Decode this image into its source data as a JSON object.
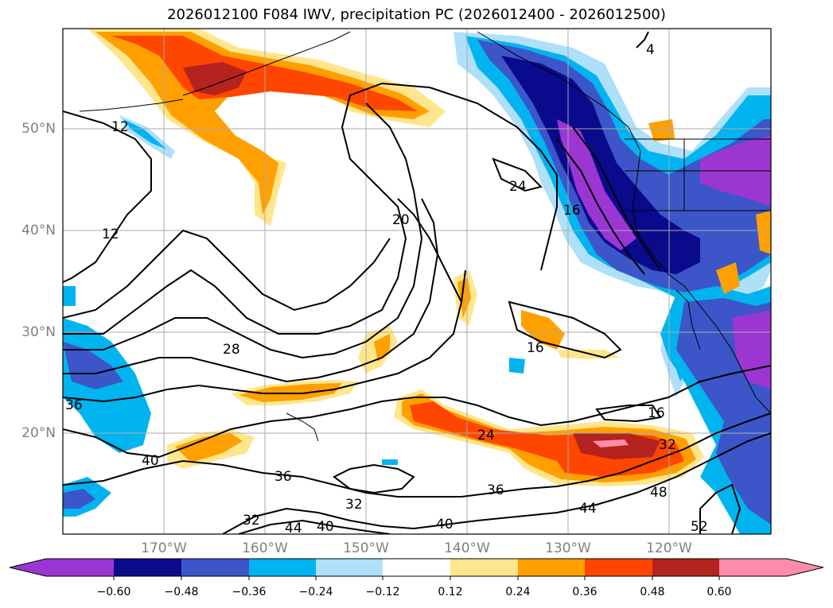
{
  "title": "2026012100 F084 IWV, precipitation PC (2026012400 - 2026012500)",
  "map": {
    "lat_labels": [
      "50°N",
      "40°N",
      "30°N",
      "20°N"
    ],
    "lon_labels": [
      "170°W",
      "160°W",
      "150°W",
      "140°W",
      "130°W",
      "120°W"
    ],
    "contour_labels": [
      "4",
      "12",
      "12",
      "16",
      "16",
      "16",
      "20",
      "24",
      "24",
      "28",
      "32",
      "32",
      "32",
      "36",
      "36",
      "36",
      "40",
      "40",
      "40",
      "44",
      "44",
      "48",
      "52"
    ],
    "contour_color": "#000000",
    "gridline_color": "#aaaaaa"
  },
  "colorbar": {
    "tick_labels": [
      "−0.60",
      "−0.48",
      "−0.36",
      "−0.24",
      "−0.12",
      "0.12",
      "0.24",
      "0.36",
      "0.48",
      "0.60"
    ],
    "colors": [
      "#9b36d3",
      "#0a0a8c",
      "#3c55c8",
      "#00b4f0",
      "#aee0fa",
      "#ffffff",
      "#ffe68c",
      "#ffa000",
      "#ff4600",
      "#b4231e",
      "#ff8caa"
    ],
    "extend": "both"
  }
}
